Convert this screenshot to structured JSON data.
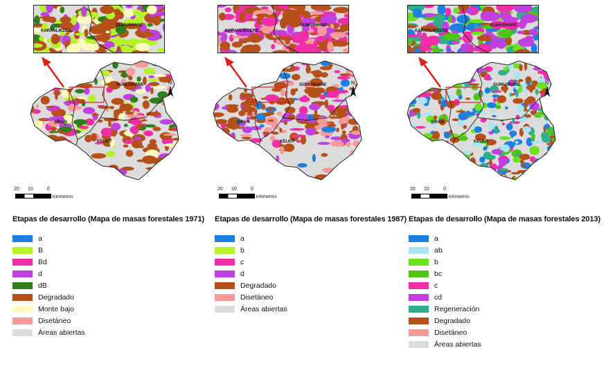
{
  "places": {
    "karanlikdere": "KARANLIKDERE",
    "gumushane": "GUMUSHANE",
    "siran": "ŞİRAN",
    "kelkit": "KELKİT"
  },
  "north_label": "N",
  "scale": {
    "ticks": [
      "20",
      "10",
      "0"
    ],
    "unit": "kilómetros"
  },
  "panels": [
    {
      "title": "Etapas de desarrollo (Mapa de masas forestales 1971)",
      "items": [
        {
          "label": "a",
          "color": "#1f7fe0"
        },
        {
          "label": "B",
          "color": "#b5f22a"
        },
        {
          "label": "Bd",
          "color": "#f02ea8"
        },
        {
          "label": "d",
          "color": "#c040e0"
        },
        {
          "label": "dB",
          "color": "#2f7d1c"
        },
        {
          "label": "Degradado",
          "color": "#b5501a"
        },
        {
          "label": "Monte bajo",
          "color": "#fffbc0"
        },
        {
          "label": "Disetáneo",
          "color": "#f49a9a"
        },
        {
          "label": "Áreas abiertas",
          "color": "#dcdcdc"
        }
      ]
    },
    {
      "title": "Etapas de desarrollo (Mapa de masas forestales 1987)",
      "items": [
        {
          "label": "a",
          "color": "#1f7fe0"
        },
        {
          "label": "b",
          "color": "#b5f22a"
        },
        {
          "label": "c",
          "color": "#f02ea8"
        },
        {
          "label": "d",
          "color": "#c040e0"
        },
        {
          "label": "Degradado",
          "color": "#b5501a"
        },
        {
          "label": "Disetáneo",
          "color": "#f49a9a"
        },
        {
          "label": "Áreas abiertas",
          "color": "#dcdcdc"
        }
      ]
    },
    {
      "title": "Etapas de desarrollo (Mapa de masas forestales 2013)",
      "items": [
        {
          "label": "a",
          "color": "#1f7fe0"
        },
        {
          "label": "ab",
          "color": "#a8e4f2"
        },
        {
          "label": "b",
          "color": "#6be21e"
        },
        {
          "label": "bc",
          "color": "#4fc41a"
        },
        {
          "label": "c",
          "color": "#f02ea8"
        },
        {
          "label": "cd",
          "color": "#c040e0"
        },
        {
          "label": "Regeneración",
          "color": "#2fae8c"
        },
        {
          "label": "Degradado",
          "color": "#b5501a"
        },
        {
          "label": "Disetáneo",
          "color": "#f49a9a"
        },
        {
          "label": "Áreas abiertas",
          "color": "#dcdcdc"
        }
      ]
    }
  ]
}
